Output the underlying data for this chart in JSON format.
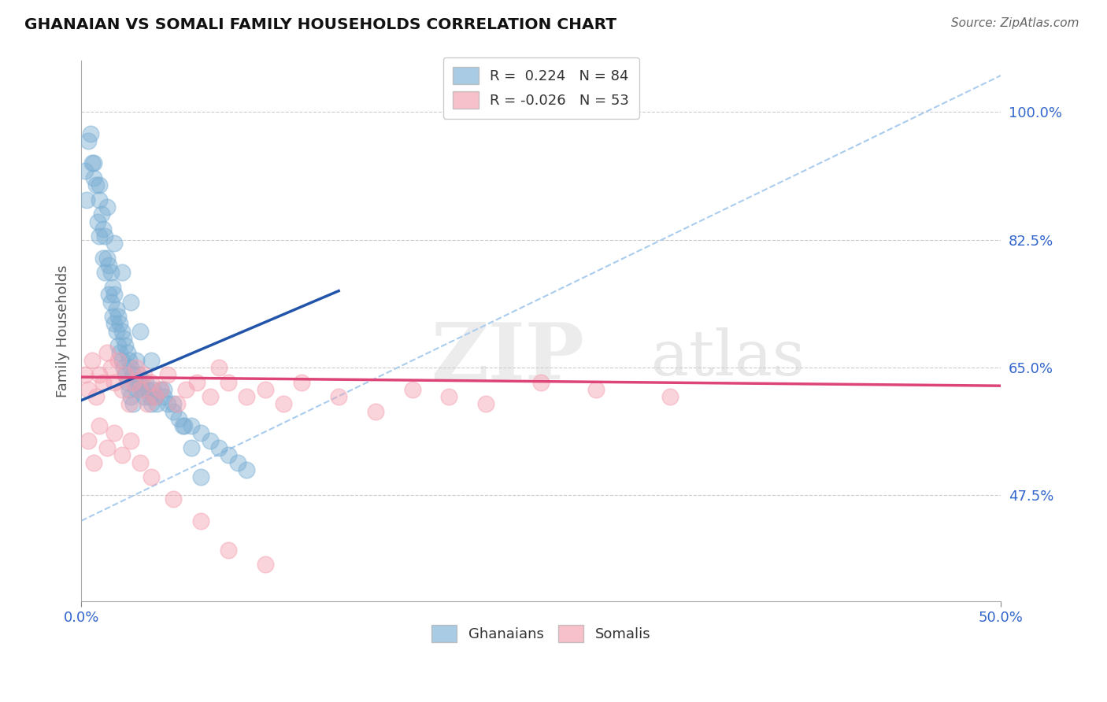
{
  "title": "GHANAIAN VS SOMALI FAMILY HOUSEHOLDS CORRELATION CHART",
  "source": "Source: ZipAtlas.com",
  "ylabel": "Family Households",
  "ytick_labels": [
    "47.5%",
    "65.0%",
    "82.5%",
    "100.0%"
  ],
  "ytick_values": [
    0.475,
    0.65,
    0.825,
    1.0
  ],
  "xlim": [
    0.0,
    0.5
  ],
  "ylim": [
    0.33,
    1.07
  ],
  "ghanaian_R": "0.224",
  "ghanaian_N": "84",
  "somali_R": "-0.026",
  "somali_N": "53",
  "ghanaian_color": "#7BAFD4",
  "somali_color": "#F4A0B0",
  "trend_blue_solid": "#2255AA",
  "trend_pink_solid": "#DD4477",
  "trend_dashed": "#AACCEE",
  "ghanaian_x": [
    0.002,
    0.003,
    0.005,
    0.006,
    0.007,
    0.008,
    0.009,
    0.01,
    0.01,
    0.011,
    0.012,
    0.012,
    0.013,
    0.013,
    0.014,
    0.015,
    0.015,
    0.016,
    0.016,
    0.017,
    0.017,
    0.018,
    0.018,
    0.019,
    0.019,
    0.02,
    0.02,
    0.021,
    0.021,
    0.022,
    0.022,
    0.023,
    0.023,
    0.024,
    0.024,
    0.025,
    0.025,
    0.026,
    0.026,
    0.027,
    0.027,
    0.028,
    0.028,
    0.029,
    0.03,
    0.03,
    0.031,
    0.032,
    0.033,
    0.034,
    0.035,
    0.036,
    0.037,
    0.038,
    0.039,
    0.04,
    0.041,
    0.043,
    0.045,
    0.047,
    0.05,
    0.053,
    0.056,
    0.06,
    0.065,
    0.07,
    0.075,
    0.08,
    0.085,
    0.09,
    0.004,
    0.007,
    0.01,
    0.014,
    0.018,
    0.022,
    0.027,
    0.032,
    0.038,
    0.045,
    0.05,
    0.055,
    0.06,
    0.065
  ],
  "ghanaian_y": [
    0.92,
    0.88,
    0.97,
    0.93,
    0.91,
    0.9,
    0.85,
    0.88,
    0.83,
    0.86,
    0.84,
    0.8,
    0.83,
    0.78,
    0.8,
    0.79,
    0.75,
    0.78,
    0.74,
    0.76,
    0.72,
    0.75,
    0.71,
    0.73,
    0.7,
    0.72,
    0.68,
    0.71,
    0.67,
    0.7,
    0.66,
    0.69,
    0.65,
    0.68,
    0.64,
    0.67,
    0.63,
    0.66,
    0.62,
    0.65,
    0.61,
    0.64,
    0.6,
    0.63,
    0.66,
    0.62,
    0.64,
    0.63,
    0.62,
    0.61,
    0.63,
    0.62,
    0.61,
    0.6,
    0.62,
    0.61,
    0.6,
    0.62,
    0.61,
    0.6,
    0.59,
    0.58,
    0.57,
    0.57,
    0.56,
    0.55,
    0.54,
    0.53,
    0.52,
    0.51,
    0.96,
    0.93,
    0.9,
    0.87,
    0.82,
    0.78,
    0.74,
    0.7,
    0.66,
    0.62,
    0.6,
    0.57,
    0.54,
    0.5
  ],
  "somali_x": [
    0.002,
    0.004,
    0.006,
    0.008,
    0.01,
    0.012,
    0.014,
    0.016,
    0.018,
    0.02,
    0.022,
    0.024,
    0.026,
    0.028,
    0.03,
    0.032,
    0.034,
    0.036,
    0.038,
    0.04,
    0.043,
    0.047,
    0.052,
    0.057,
    0.063,
    0.07,
    0.075,
    0.08,
    0.09,
    0.1,
    0.11,
    0.12,
    0.14,
    0.16,
    0.18,
    0.2,
    0.22,
    0.25,
    0.28,
    0.32,
    0.004,
    0.007,
    0.01,
    0.014,
    0.018,
    0.022,
    0.027,
    0.032,
    0.038,
    0.05,
    0.065,
    0.08,
    0.1
  ],
  "somali_y": [
    0.64,
    0.62,
    0.66,
    0.61,
    0.64,
    0.63,
    0.67,
    0.65,
    0.63,
    0.66,
    0.62,
    0.64,
    0.6,
    0.63,
    0.65,
    0.62,
    0.64,
    0.6,
    0.63,
    0.61,
    0.62,
    0.64,
    0.6,
    0.62,
    0.63,
    0.61,
    0.65,
    0.63,
    0.61,
    0.62,
    0.6,
    0.63,
    0.61,
    0.59,
    0.62,
    0.61,
    0.6,
    0.63,
    0.62,
    0.61,
    0.55,
    0.52,
    0.57,
    0.54,
    0.56,
    0.53,
    0.55,
    0.52,
    0.5,
    0.47,
    0.44,
    0.4,
    0.38
  ],
  "blue_trend_x": [
    0.0,
    0.14
  ],
  "blue_trend_y": [
    0.605,
    0.755
  ],
  "dashed_trend_x": [
    0.0,
    0.5
  ],
  "dashed_trend_y": [
    0.44,
    1.05
  ],
  "pink_trend_x": [
    0.0,
    0.5
  ],
  "pink_trend_y": [
    0.637,
    0.625
  ]
}
